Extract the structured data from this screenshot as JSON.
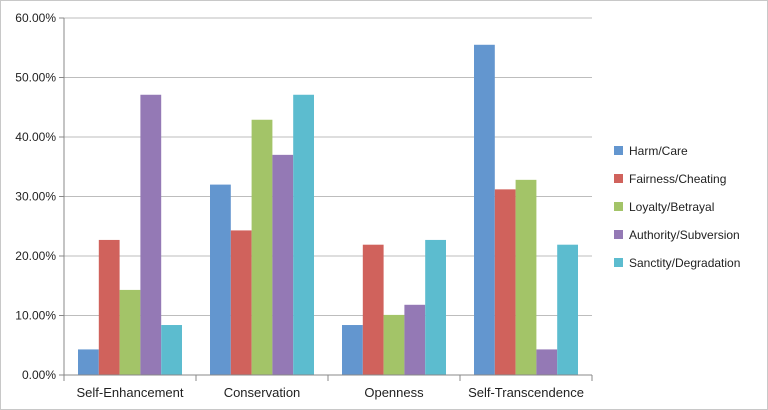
{
  "chart_data": {
    "type": "bar",
    "categories": [
      "Self-Enhancement",
      "Conservation",
      "Openness",
      "Self-Transcendence"
    ],
    "series": [
      {
        "name": "Harm/Care",
        "color": "#6396cf",
        "values": [
          0.043,
          0.32,
          0.084,
          0.555
        ]
      },
      {
        "name": "Fairness/Cheating",
        "color": "#d0625c",
        "values": [
          0.227,
          0.243,
          0.219,
          0.312
        ]
      },
      {
        "name": "Loyalty/Betrayal",
        "color": "#a3c468",
        "values": [
          0.143,
          0.429,
          0.101,
          0.328
        ]
      },
      {
        "name": "Authority/Subversion",
        "color": "#9479b5",
        "values": [
          0.471,
          0.37,
          0.118,
          0.043
        ]
      },
      {
        "name": "Sanctity/Degradation",
        "color": "#5cbccf",
        "values": [
          0.084,
          0.471,
          0.227,
          0.219
        ]
      }
    ],
    "yticks": [
      "0.00%",
      "10.00%",
      "20.00%",
      "30.00%",
      "40.00%",
      "50.00%",
      "60.00%"
    ],
    "ylim": [
      0,
      0.6
    ],
    "grid": true,
    "legend": "right"
  }
}
